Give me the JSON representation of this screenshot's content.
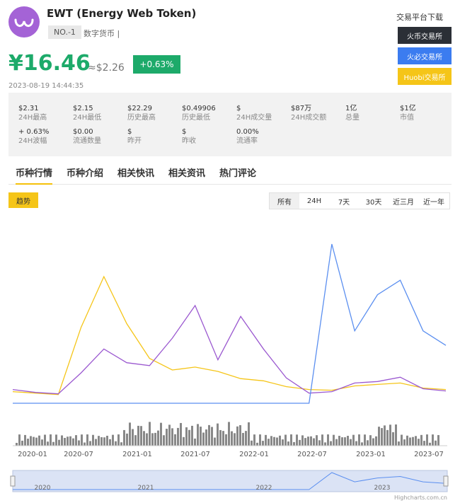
{
  "coin": {
    "name": "EWT (Energy Web Token)",
    "rank": "NO.-1",
    "category": "数字货币 |"
  },
  "price": {
    "cny": "¥16.46",
    "usd": "≈$2.26",
    "change": "+0.63%",
    "timestamp": "2023-08-19 14:44:35"
  },
  "download": {
    "title": "交易平台下载",
    "exchanges": [
      {
        "label": "火币交易所",
        "color": "#2b2f36"
      },
      {
        "label": "火必交易所",
        "color": "#3b7cf0"
      },
      {
        "label": "Huobi交易所",
        "color": "#f5c518"
      }
    ]
  },
  "stats": [
    {
      "value": "$2.31",
      "label": "24H最高"
    },
    {
      "value": "$2.15",
      "label": "24H最低"
    },
    {
      "value": "$22.29",
      "label": "历史最高"
    },
    {
      "value": "$0.49906",
      "label": "历史最低"
    },
    {
      "value": "$",
      "label": "24H成交量"
    },
    {
      "value": "$87万",
      "label": "24H成交额"
    },
    {
      "value": "1亿",
      "label": "总量"
    },
    {
      "value": "$1亿",
      "label": "市值"
    },
    {
      "value": "+ 0.63%",
      "label": "24H波幅"
    },
    {
      "value": "$0.00",
      "label": "流通数量"
    },
    {
      "value": "$",
      "label": "昨开"
    },
    {
      "value": "$",
      "label": "昨收"
    },
    {
      "value": "0.00%",
      "label": "流通率"
    }
  ],
  "tabs": [
    "币种行情",
    "币种介绍",
    "相关快讯",
    "相关资讯",
    "热门评论"
  ],
  "trend_button": "趋势",
  "ranges": [
    "所有",
    "24H",
    "7天",
    "30天",
    "近三月",
    "近一年"
  ],
  "chart": {
    "x_ticks": [
      "2020-01",
      "2020-07",
      "2021-01",
      "2021-07",
      "2022-01",
      "2022-07",
      "2023-01",
      "2023-07"
    ],
    "navigator_ticks": [
      "2020",
      "2021",
      "2022",
      "2023"
    ],
    "credit": "Highcharts.com.cn",
    "colors": {
      "yellow": "#f5c518",
      "purple": "#9b59d0",
      "blue": "#5b8ff0",
      "volume": "#888888"
    }
  },
  "chart_data": {
    "type": "line",
    "x": [
      "2019-11",
      "2020-01",
      "2020-04",
      "2020-06",
      "2020-07",
      "2020-09",
      "2020-12",
      "2021-02",
      "2021-04",
      "2021-06",
      "2021-09",
      "2021-12",
      "2022-03",
      "2022-05",
      "2022-06",
      "2022-09",
      "2022-12",
      "2023-03",
      "2023-06",
      "2023-08"
    ],
    "series": [
      {
        "values": [
          1.6,
          1.4,
          1.2,
          10.5,
          17.5,
          11.0,
          6.2,
          4.6,
          5.0,
          4.4,
          3.4,
          3.1,
          2.3,
          1.9,
          1.8,
          2.4,
          2.6,
          2.8,
          2.1,
          1.9
        ]
      },
      {
        "values": [
          1.9,
          1.5,
          1.3,
          4.2,
          7.5,
          5.6,
          5.2,
          9.0,
          13.5,
          6.0,
          12.0,
          7.5,
          3.5,
          1.4,
          1.6,
          2.8,
          3.0,
          3.6,
          2.0,
          1.7
        ]
      },
      {
        "values": [
          0,
          0,
          0,
          0,
          0,
          0,
          0,
          0,
          0,
          0,
          0,
          0,
          0,
          0,
          22.0,
          10.0,
          15.0,
          17.0,
          10.0,
          8.0
        ]
      }
    ]
  }
}
